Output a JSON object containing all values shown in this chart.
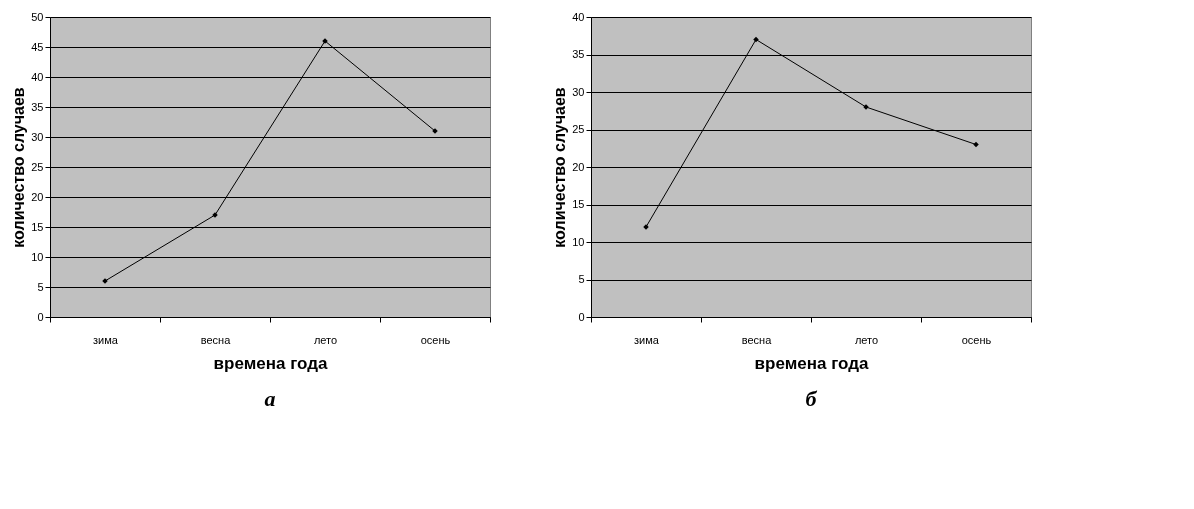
{
  "chart_data": [
    {
      "type": "line",
      "title": "а",
      "xlabel": "времена года",
      "ylabel": "количество случаев",
      "categories": [
        "зима",
        "весна",
        "лето",
        "осень"
      ],
      "series": [
        {
          "color": "#000000",
          "values": [
            6,
            17,
            46,
            31
          ]
        }
      ],
      "ylim": [
        0,
        50
      ],
      "yticks": [
        0,
        5,
        10,
        15,
        20,
        25,
        30,
        35,
        40,
        45,
        50
      ],
      "grid": "y",
      "marker": "diamond",
      "line_style": "solid"
    },
    {
      "type": "line",
      "title": "б",
      "xlabel": "времена года",
      "ylabel": "количество случаев",
      "categories": [
        "зима",
        "весна",
        "лето",
        "осень"
      ],
      "series": [
        {
          "color": "#000000",
          "values": [
            12,
            37,
            28,
            23
          ]
        }
      ],
      "ylim": [
        0,
        40
      ],
      "yticks": [
        0,
        5,
        10,
        15,
        20,
        25,
        30,
        35,
        40
      ],
      "grid": "y",
      "marker": "diamond",
      "line_style": "solid"
    }
  ]
}
